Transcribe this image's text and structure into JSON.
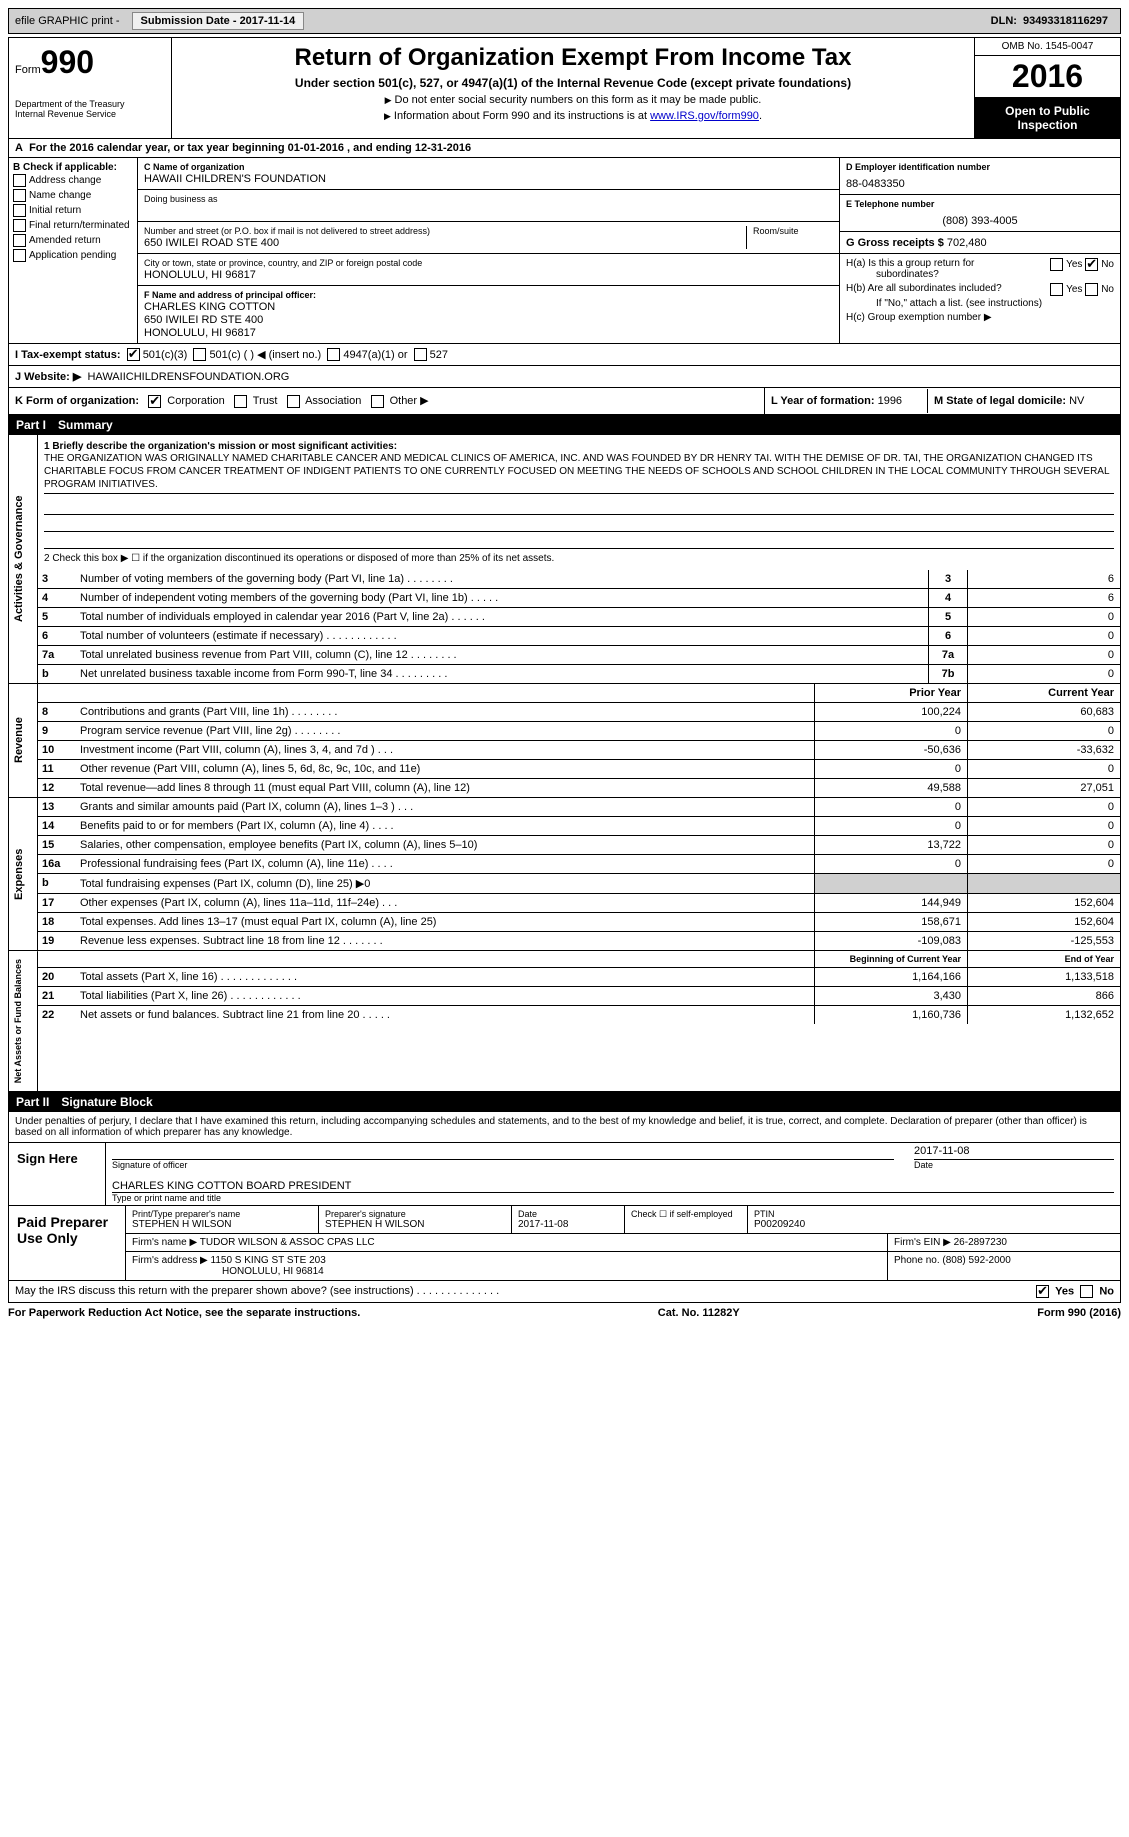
{
  "topbar": {
    "efile": "efile GRAPHIC print -",
    "sub_label": "Submission Date -",
    "sub_date": "2017-11-14",
    "dln_label": "DLN:",
    "dln": "93493318116297"
  },
  "header": {
    "form_word": "Form",
    "form_num": "990",
    "dept1": "Department of the Treasury",
    "dept2": "Internal Revenue Service",
    "title": "Return of Organization Exempt From Income Tax",
    "subtitle": "Under section 501(c), 527, or 4947(a)(1) of the Internal Revenue Code (except private foundations)",
    "note1": "Do not enter social security numbers on this form as it may be made public.",
    "note2": "Information about Form 990 and its instructions is at ",
    "link": "www.IRS.gov/form990",
    "omb": "OMB No. 1545-0047",
    "year": "2016",
    "open1": "Open to Public",
    "open2": "Inspection"
  },
  "rowA": {
    "prefix": "A",
    "text": "For the 2016 calendar year, or tax year beginning 01-01-2016   , and ending 12-31-2016"
  },
  "colB": {
    "heading": "B Check if applicable:",
    "items": [
      "Address change",
      "Name change",
      "Initial return",
      "Final return/terminated",
      "Amended return",
      "Application pending"
    ]
  },
  "colC": {
    "name_label": "C Name of organization",
    "name": "HAWAII CHILDREN'S FOUNDATION",
    "dba_label": "Doing business as",
    "street_label": "Number and street (or P.O. box if mail is not delivered to street address)",
    "room_label": "Room/suite",
    "street": "650 IWILEI ROAD STE 400",
    "city_label": "City or town, state or province, country, and ZIP or foreign postal code",
    "city": "HONOLULU, HI  96817",
    "officer_label": "F Name and address of principal officer:",
    "officer_name": "CHARLES KING COTTON",
    "officer_addr1": "650 IWILEI RD STE 400",
    "officer_addr2": "HONOLULU, HI  96817"
  },
  "colD": {
    "ein_label": "D Employer identification number",
    "ein": "88-0483350",
    "tel_label": "E Telephone number",
    "tel": "(808) 393-4005",
    "gross_label": "G Gross receipts $",
    "gross": "702,480",
    "ha": "H(a)  Is this a group return for",
    "ha2": "subordinates?",
    "hb": "H(b)  Are all subordinates included?",
    "hb_note": "If \"No,\" attach a list. (see instructions)",
    "hc": "H(c)  Group exemption number ▶",
    "yes": "Yes",
    "no": "No"
  },
  "rowI": {
    "label": "I   Tax-exempt status:",
    "opt1": "501(c)(3)",
    "opt2": "501(c) (  ) ◀ (insert no.)",
    "opt3": "4947(a)(1) or",
    "opt4": "527"
  },
  "rowJ": {
    "label": "J   Website: ▶",
    "val": "HAWAIICHILDRENSFOUNDATION.ORG"
  },
  "rowK": {
    "label": "K Form of organization:",
    "opts": [
      "Corporation",
      "Trust",
      "Association",
      "Other ▶"
    ],
    "L_label": "L Year of formation:",
    "L_val": "1996",
    "M_label": "M State of legal domicile:",
    "M_val": "NV"
  },
  "part1": {
    "num": "Part I",
    "title": "Summary"
  },
  "summary": {
    "line1_label": "1  Briefly describe the organization's mission or most significant activities:",
    "mission": "THE ORGANIZATION WAS ORIGINALLY NAMED CHARITABLE CANCER AND MEDICAL CLINICS OF AMERICA, INC. AND WAS FOUNDED BY DR HENRY TAI. WITH THE DEMISE OF DR. TAI, THE ORGANIZATION CHANGED ITS CHARITABLE FOCUS FROM CANCER TREATMENT OF INDIGENT PATIENTS TO ONE CURRENTLY FOCUSED ON MEETING THE NEEDS OF SCHOOLS AND SCHOOL CHILDREN IN THE LOCAL COMMUNITY THROUGH SEVERAL PROGRAM INITIATIVES.",
    "line2": "2   Check this box ▶ ☐  if the organization discontinued its operations or disposed of more than 25% of its net assets.",
    "rows": [
      {
        "n": "3",
        "d": "Number of voting members of the governing body (Part VI, line 1a)   .   .   .   .   .   .   .   .",
        "v": "6"
      },
      {
        "n": "4",
        "d": "Number of independent voting members of the governing body (Part VI, line 1b)   .   .   .   .   .",
        "v": "6"
      },
      {
        "n": "5",
        "d": "Total number of individuals employed in calendar year 2016 (Part V, line 2a)   .   .   .   .   .   .",
        "v": "0"
      },
      {
        "n": "6",
        "d": "Total number of volunteers (estimate if necessary)   .   .   .   .   .   .   .   .   .   .   .   .",
        "v": "0"
      },
      {
        "n": "7a",
        "d": "Total unrelated business revenue from Part VIII, column (C), line 12   .   .   .   .   .   .   .   .",
        "v": "0"
      },
      {
        "n": "b",
        "d": "Net unrelated business taxable income from Form 990-T, line 34   .   .   .   .   .   .   .   .   .",
        "nl": "7b",
        "v": "0"
      }
    ],
    "side1": "Activities & Governance"
  },
  "revenue": {
    "side": "Revenue",
    "header_prior": "Prior Year",
    "header_curr": "Current Year",
    "rows": [
      {
        "n": "8",
        "d": "Contributions and grants (Part VIII, line 1h)   .   .   .   .   .   .   .   .",
        "p": "100,224",
        "c": "60,683"
      },
      {
        "n": "9",
        "d": "Program service revenue (Part VIII, line 2g)   .   .   .   .   .   .   .   .",
        "p": "0",
        "c": "0"
      },
      {
        "n": "10",
        "d": "Investment income (Part VIII, column (A), lines 3, 4, and 7d )   .   .   .",
        "p": "-50,636",
        "c": "-33,632"
      },
      {
        "n": "11",
        "d": "Other revenue (Part VIII, column (A), lines 5, 6d, 8c, 9c, 10c, and 11e)",
        "p": "0",
        "c": "0"
      },
      {
        "n": "12",
        "d": "Total revenue—add lines 8 through 11 (must equal Part VIII, column (A), line 12)",
        "p": "49,588",
        "c": "27,051"
      }
    ]
  },
  "expenses": {
    "side": "Expenses",
    "rows": [
      {
        "n": "13",
        "d": "Grants and similar amounts paid (Part IX, column (A), lines 1–3 )   .   .   .",
        "p": "0",
        "c": "0"
      },
      {
        "n": "14",
        "d": "Benefits paid to or for members (Part IX, column (A), line 4)   .   .   .   .",
        "p": "0",
        "c": "0"
      },
      {
        "n": "15",
        "d": "Salaries, other compensation, employee benefits (Part IX, column (A), lines 5–10)",
        "p": "13,722",
        "c": "0"
      },
      {
        "n": "16a",
        "d": "Professional fundraising fees (Part IX, column (A), line 11e)   .   .   .   .",
        "p": "0",
        "c": "0"
      },
      {
        "n": "b",
        "d": "Total fundraising expenses (Part IX, column (D), line 25) ▶0",
        "shaded": true
      },
      {
        "n": "17",
        "d": "Other expenses (Part IX, column (A), lines 11a–11d, 11f–24e)   .   .   .",
        "p": "144,949",
        "c": "152,604"
      },
      {
        "n": "18",
        "d": "Total expenses. Add lines 13–17 (must equal Part IX, column (A), line 25)",
        "p": "158,671",
        "c": "152,604"
      },
      {
        "n": "19",
        "d": "Revenue less expenses. Subtract line 18 from line 12  .   .   .   .   .   .   .",
        "p": "-109,083",
        "c": "-125,553"
      }
    ]
  },
  "netassets": {
    "side": "Net Assets or Fund Balances",
    "header_begin": "Beginning of Current Year",
    "header_end": "End of Year",
    "rows": [
      {
        "n": "20",
        "d": "Total assets (Part X, line 16)   .   .   .   .   .   .   .   .   .   .   .   .   .",
        "p": "1,164,166",
        "c": "1,133,518"
      },
      {
        "n": "21",
        "d": "Total liabilities (Part X, line 26)   .   .   .   .   .   .   .   .   .   .   .   .",
        "p": "3,430",
        "c": "866"
      },
      {
        "n": "22",
        "d": "Net assets or fund balances. Subtract line 21 from line 20  .   .   .   .   .",
        "p": "1,160,736",
        "c": "1,132,652"
      }
    ]
  },
  "part2": {
    "num": "Part II",
    "title": "Signature Block"
  },
  "sig": {
    "declaration": "Under penalties of perjury, I declare that I have examined this return, including accompanying schedules and statements, and to the best of my knowledge and belief, it is true, correct, and complete. Declaration of preparer (other than officer) is based on all information of which preparer has any knowledge.",
    "sign_here": "Sign Here",
    "sig_label": "Signature of officer",
    "date_label": "Date",
    "date": "2017-11-08",
    "name_title": "CHARLES KING COTTON BOARD PRESIDENT",
    "name_label": "Type or print name and title"
  },
  "prep": {
    "label": "Paid Preparer Use Only",
    "print_label": "Print/Type preparer's name",
    "print_name": "STEPHEN H WILSON",
    "sig_label": "Preparer's signature",
    "sig_name": "STEPHEN H WILSON",
    "date_label": "Date",
    "date": "2017-11-08",
    "check_label": "Check ☐ if self-employed",
    "ptin_label": "PTIN",
    "ptin": "P00209240",
    "firm_name_label": "Firm's name    ▶",
    "firm_name": "TUDOR WILSON & ASSOC CPAS LLC",
    "firm_ein_label": "Firm's EIN ▶",
    "firm_ein": "26-2897230",
    "firm_addr_label": "Firm's address ▶",
    "firm_addr1": "1150 S KING ST STE 203",
    "firm_addr2": "HONOLULU, HI  96814",
    "phone_label": "Phone no.",
    "phone": "(808) 592-2000"
  },
  "discuss": {
    "q": "May the IRS discuss this return with the preparer shown above? (see instructions)   .   .   .   .   .   .   .   .   .   .   .   .   .   .",
    "yes": "Yes",
    "no": "No"
  },
  "footer": {
    "left": "For Paperwork Reduction Act Notice, see the separate instructions.",
    "mid": "Cat. No. 11282Y",
    "right": "Form 990 (2016)"
  }
}
